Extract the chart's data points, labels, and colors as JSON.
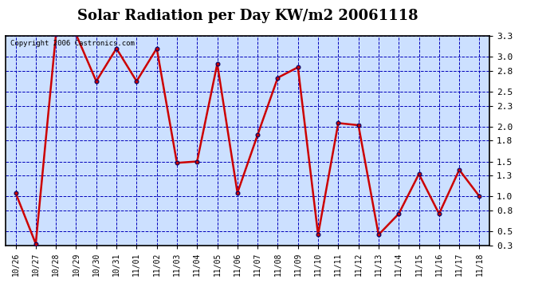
{
  "title": "Solar Radiation per Day KW/m2 20061118",
  "copyright": "Copyright 2006 Castronics.com",
  "labels": [
    "10/26",
    "10/27",
    "10/28",
    "10/29",
    "10/30",
    "10/31",
    "11/01",
    "11/02",
    "11/03",
    "11/04",
    "11/05",
    "11/06",
    "11/07",
    "11/08",
    "11/09",
    "11/10",
    "11/11",
    "11/12",
    "11/13",
    "11/14",
    "11/15",
    "11/16",
    "11/17",
    "11/18"
  ],
  "values": [
    1.05,
    0.32,
    3.32,
    3.32,
    2.65,
    3.12,
    2.65,
    3.12,
    1.48,
    1.5,
    2.9,
    1.05,
    1.88,
    2.7,
    2.85,
    0.45,
    2.05,
    2.02,
    0.45,
    0.75,
    1.32,
    0.75,
    1.38,
    1.0
  ],
  "line_color": "#cc0000",
  "marker_color": "#cc0000",
  "marker_edge_color": "#000066",
  "bg_color": "#ffffff",
  "plot_bg_color": "#cce0ff",
  "grid_color": "#0000bb",
  "ylim": [
    0.3,
    3.3
  ],
  "yticks": [
    0.3,
    0.5,
    0.8,
    1.0,
    1.3,
    1.5,
    1.8,
    2.0,
    2.3,
    2.5,
    2.8,
    3.0,
    3.3
  ],
  "ylabel_fontsize": 8,
  "xlabel_fontsize": 7,
  "title_fontsize": 13,
  "copyright_fontsize": 6.5
}
